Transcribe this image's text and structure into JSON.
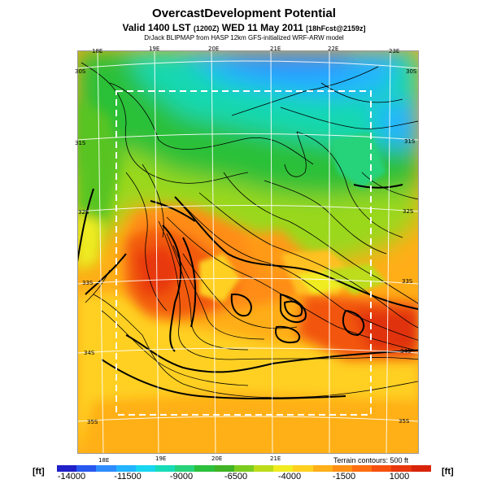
{
  "header": {
    "title": "OvercastDevelopment Potential",
    "valid_prefix": "Valid 1400 LST",
    "valid_utc": "(1200Z)",
    "valid_date": "WED 11 May 2011",
    "forecast": "[18hFcst@2159z]",
    "credit": "DrJack BLIPMAP from HASP 12km GFS-initialized WRF-ARW model"
  },
  "map": {
    "lon_labels_top": [
      "18E",
      "19E",
      "20E",
      "21E",
      "22E",
      "23E"
    ],
    "lon_labels_bottom": [
      "18E",
      "19E",
      "20E",
      "21E"
    ],
    "lat_labels_left": [
      "30S",
      "31S",
      "32S",
      "33S",
      "34S",
      "35S"
    ],
    "lat_labels_right": [
      "30S",
      "31S",
      "32S",
      "33S",
      "34S",
      "35S"
    ],
    "terrain_note": "Terrain contours: 500 ft"
  },
  "colorbar": {
    "unit_left": "[ft]",
    "unit_right": "[ft]",
    "tick_labels": [
      "-14000",
      "-11500",
      "-9000",
      "-6500",
      "-4000",
      "-1500",
      "1000"
    ],
    "colors": [
      "#2020c8",
      "#2858ee",
      "#2f8cff",
      "#22b4ff",
      "#18d6f0",
      "#18dcb8",
      "#26d27a",
      "#2cc03c",
      "#40b424",
      "#7ccc20",
      "#bcdc1a",
      "#f0ec20",
      "#ffd020",
      "#ffb018",
      "#ff9014",
      "#ff6e10",
      "#f6500e",
      "#e8380c",
      "#d8240a"
    ]
  }
}
